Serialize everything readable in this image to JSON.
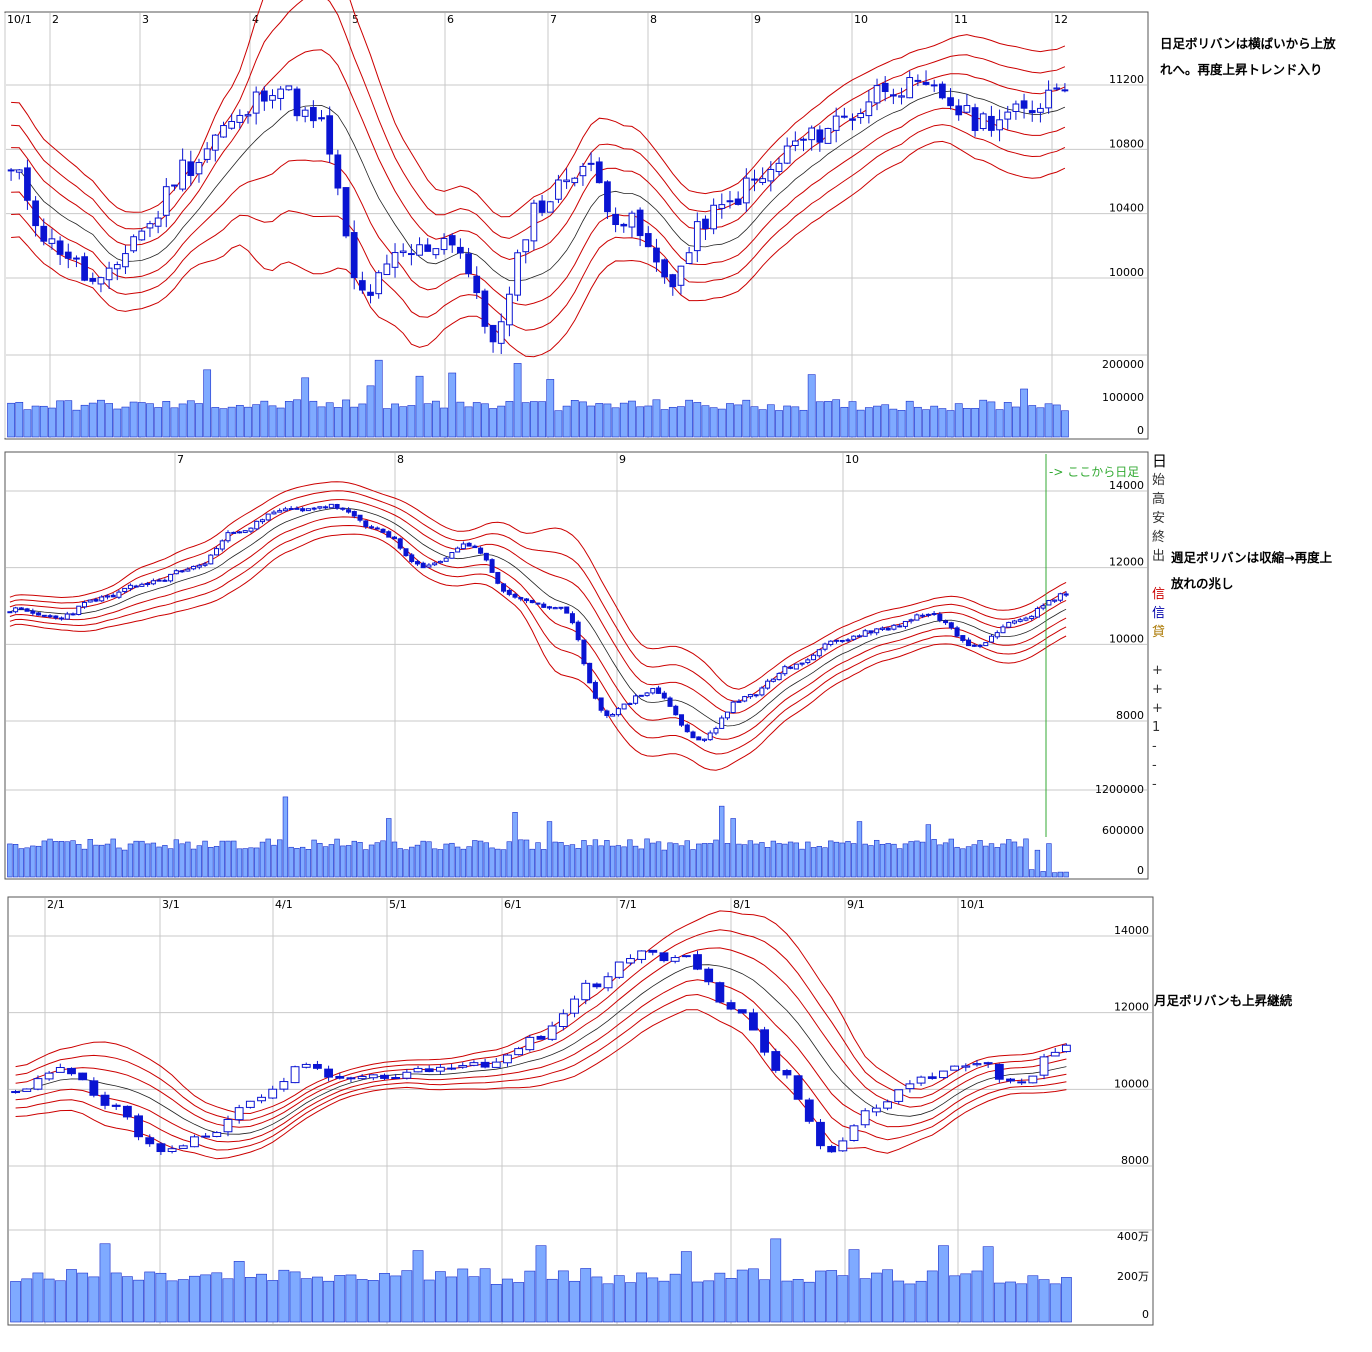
{
  "colors": {
    "band": "#cc0000",
    "ma": "#222222",
    "candle": "#0a14d2",
    "volume_fill": "#7faaff",
    "volume_edge": "#1a2ecc",
    "grid": "#c9c9c9",
    "marker": "#33aa33"
  },
  "notes": {
    "daily": [
      "日足ボリバンは横ばいから上放",
      "れへ。再度上昇トレンド入り"
    ],
    "weekly": [
      "週足ボリバンは収縮→再度上",
      "放れの兆し"
    ],
    "monthly": [
      "月足ボリバンも上昇継続"
    ]
  },
  "sidebar_glyphs": [
    "日",
    "始",
    "高",
    "安",
    "終",
    "出",
    "",
    "信",
    "信",
    "貸",
    "",
    "+",
    "+",
    "+",
    "1",
    "-",
    "-",
    "-"
  ],
  "chart_data": [
    {
      "name": "daily",
      "type": "candlestick",
      "x_labels": [
        "10/1",
        "2",
        "3",
        "4",
        "5",
        "6",
        "7",
        "8",
        "9",
        "10",
        "11",
        "12"
      ],
      "y_ticks": [
        11200,
        10800,
        10400,
        10000
      ],
      "ylim": [
        9400,
        11950
      ],
      "volume_ticks": [
        "200000",
        "100000",
        "0"
      ],
      "volume_max": 250000,
      "close_path": [
        10650,
        10200,
        9950,
        10300,
        10700,
        10950,
        11200,
        10950,
        9900,
        10150,
        10250,
        9650,
        10450,
        10700,
        10350,
        10000,
        10400,
        10600,
        10850,
        11000,
        11200,
        11150,
        10980,
        11020,
        11230
      ],
      "band_widths": [
        420,
        380,
        330,
        300,
        310,
        500,
        900,
        1050,
        800,
        600,
        420,
        360,
        500,
        520,
        420,
        350,
        330,
        340,
        350,
        360,
        330,
        300,
        380,
        400,
        380
      ],
      "band_ratios": [
        0.33,
        0.66,
        1.0
      ],
      "ma_lag": 2,
      "candle_count": 130,
      "volume_base": 100000,
      "volume_spikes": [
        [
          24,
          210000
        ],
        [
          36,
          185000
        ],
        [
          44,
          160000
        ],
        [
          45,
          240000
        ],
        [
          50,
          190000
        ],
        [
          54,
          200000
        ],
        [
          62,
          230000
        ],
        [
          66,
          180000
        ],
        [
          98,
          195000
        ],
        [
          124,
          150000
        ]
      ]
    },
    {
      "name": "weekly",
      "type": "candlestick",
      "x_labels": [
        "7",
        "8",
        "9",
        "10"
      ],
      "y_ticks": [
        14000,
        12000,
        10000,
        8000
      ],
      "ylim": [
        6800,
        14700
      ],
      "volume_ticks": [
        "1200000",
        "600000",
        "0"
      ],
      "volume_max": 1380000,
      "annotation": "-> ここから日足",
      "close_path": [
        10900,
        10700,
        11200,
        11600,
        12000,
        13000,
        13500,
        13600,
        13000,
        12000,
        12600,
        11200,
        10900,
        8200,
        8800,
        7500,
        8600,
        9400,
        10100,
        10400,
        10800,
        10000,
        10700,
        11300
      ],
      "band_widths": [
        380,
        420,
        500,
        700,
        800,
        900,
        800,
        700,
        600,
        800,
        700,
        1000,
        1900,
        1600,
        1400,
        1400,
        900,
        800,
        700,
        650,
        600,
        650,
        700,
        700
      ],
      "band_ratios": [
        0.33,
        0.66,
        1.0
      ],
      "ma_lag": 2,
      "candle_count": 185,
      "volume_base": 530000,
      "volume_spikes": [
        [
          48,
          1300000
        ],
        [
          66,
          950000
        ],
        [
          88,
          1050000
        ],
        [
          94,
          900000
        ],
        [
          124,
          1150000
        ],
        [
          126,
          950000
        ],
        [
          148,
          900000
        ],
        [
          160,
          850000
        ]
      ],
      "volume_tail": [
        [
          178,
          120000
        ],
        [
          180,
          90000
        ],
        [
          182,
          70000
        ]
      ]
    },
    {
      "name": "monthly",
      "type": "candlestick",
      "x_labels": [
        "2/1",
        "3/1",
        "4/1",
        "5/1",
        "6/1",
        "7/1",
        "8/1",
        "9/1",
        "10/1"
      ],
      "y_ticks": [
        14000,
        12000,
        10000,
        8000
      ],
      "ylim": [
        6200,
        15000
      ],
      "volume_ticks": [
        "400万",
        "200万",
        "0"
      ],
      "volume_max": 4600000,
      "close_path": [
        9900,
        10500,
        9500,
        8400,
        8700,
        9700,
        10600,
        10200,
        10400,
        10600,
        10700,
        11400,
        12700,
        13500,
        13400,
        12200,
        10500,
        8400,
        9500,
        10300,
        10700,
        10200,
        11200
      ],
      "band_widths": [
        650,
        800,
        1100,
        1000,
        700,
        500,
        400,
        350,
        350,
        400,
        500,
        700,
        900,
        1000,
        1100,
        1500,
        2000,
        1900,
        1100,
        650,
        600,
        500,
        600
      ],
      "band_ratios": [
        0.33,
        0.66,
        1.0
      ],
      "ma_lag": 2,
      "candle_count": 95,
      "volume_base": 2350000,
      "volume_spikes": [
        [
          8,
          4000000
        ],
        [
          20,
          3100000
        ],
        [
          36,
          3650000
        ],
        [
          47,
          3900000
        ],
        [
          60,
          3600000
        ],
        [
          68,
          4250000
        ],
        [
          75,
          3700000
        ],
        [
          83,
          3900000
        ],
        [
          87,
          3850000
        ]
      ]
    }
  ]
}
